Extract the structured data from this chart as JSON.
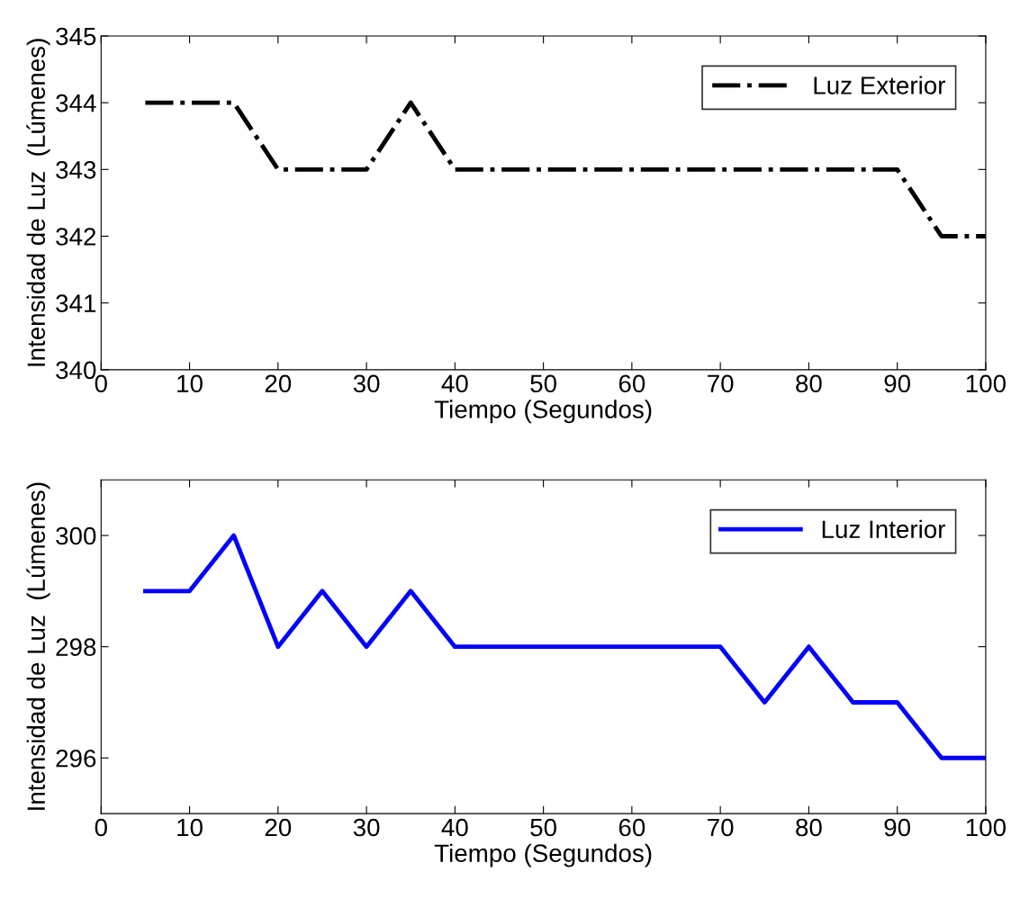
{
  "chart_data": [
    {
      "type": "line",
      "xlabel": "Tiempo (Segundos)",
      "ylabel": "Intensidad de Luz  (Lúmenes)",
      "x": [
        5,
        10,
        15,
        20,
        25,
        30,
        35,
        40,
        45,
        50,
        55,
        60,
        65,
        70,
        75,
        80,
        85,
        90,
        95,
        100
      ],
      "series": [
        {
          "name": "Luz Exterior",
          "color": "#000000",
          "line_style": "dashdot",
          "values": [
            344,
            344,
            344,
            343,
            343,
            343,
            344,
            343,
            343,
            343,
            343,
            343,
            343,
            343,
            343,
            343,
            343,
            343,
            342,
            342
          ]
        }
      ],
      "xlim": [
        0,
        100
      ],
      "xticks": [
        0,
        10,
        20,
        30,
        40,
        50,
        60,
        70,
        80,
        90,
        100
      ],
      "ylim": [
        340,
        345
      ],
      "yticks": [
        340,
        341,
        342,
        343,
        344,
        345
      ],
      "grid": false,
      "legend": "top right",
      "marker": "none"
    },
    {
      "type": "line",
      "xlabel": "Tiempo (Segundos)",
      "ylabel": "Intensidad de Luz  (Lúmenes)",
      "x": [
        5,
        10,
        15,
        20,
        25,
        30,
        35,
        40,
        45,
        50,
        55,
        60,
        65,
        70,
        75,
        80,
        85,
        90,
        95,
        100
      ],
      "series": [
        {
          "name": "Luz Interior",
          "color": "#0000ff",
          "line_style": "solid",
          "values": [
            299,
            299,
            300,
            298,
            299,
            298,
            299,
            298,
            298,
            298,
            298,
            298,
            298,
            298,
            297,
            298,
            297,
            297,
            296,
            296
          ]
        }
      ],
      "xlim": [
        0,
        100
      ],
      "xticks": [
        0,
        10,
        20,
        30,
        40,
        50,
        60,
        70,
        80,
        90,
        100
      ],
      "ylim": [
        295,
        301
      ],
      "yticks": [
        296,
        298,
        300
      ],
      "grid": false,
      "legend": "top right",
      "marker": "none"
    }
  ]
}
